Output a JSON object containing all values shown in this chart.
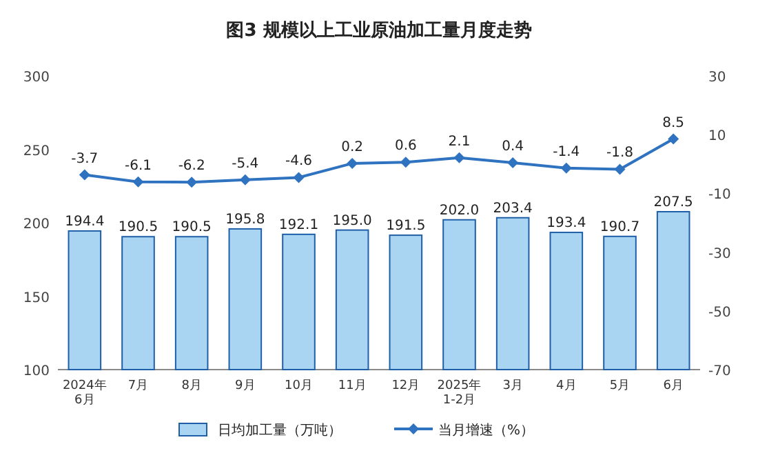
{
  "chart_data": {
    "type": "bar",
    "title": "图3  规模以上工业原油加工量月度走势",
    "categories": [
      "2024年\n6月",
      "7月",
      "8月",
      "9月",
      "10月",
      "11月",
      "12月",
      "2025年\n1-2月",
      "3月",
      "4月",
      "5月",
      "6月"
    ],
    "series": [
      {
        "name": "日均加工量（万吨）",
        "color": "#a9d5f2",
        "values": [
          194.4,
          190.5,
          190.5,
          195.8,
          192.1,
          195.0,
          191.5,
          202.0,
          203.4,
          193.4,
          190.7,
          207.5
        ],
        "value_labels": [
          "194.4",
          "190.5",
          "190.5",
          "195.8",
          "192.1",
          "195.0",
          "191.5",
          "202.0",
          "203.4",
          "193.4",
          "190.7",
          "207.5"
        ]
      },
      {
        "name": "当月增速（%）",
        "type": "line",
        "axis": "y2",
        "color": "#2e72c0",
        "values": [
          -3.7,
          -6.1,
          -6.2,
          -5.4,
          -4.6,
          0.2,
          0.6,
          2.1,
          0.4,
          -1.4,
          -1.8,
          8.5
        ],
        "value_labels": [
          "-3.7",
          "-6.1",
          "-6.2",
          "-5.4",
          "-4.6",
          "0.2",
          "0.6",
          "2.1",
          "0.4",
          "-1.4",
          "-1.8",
          "8.5"
        ],
        "marker": "diamond"
      }
    ],
    "ylim": [
      100,
      300
    ],
    "yticks": [
      100,
      150,
      200,
      250,
      300
    ],
    "y2lim": [
      -70,
      30
    ],
    "y2ticks": [
      -70,
      -50,
      -30,
      -10,
      10,
      30
    ],
    "legend": "bottom",
    "grid": false
  }
}
